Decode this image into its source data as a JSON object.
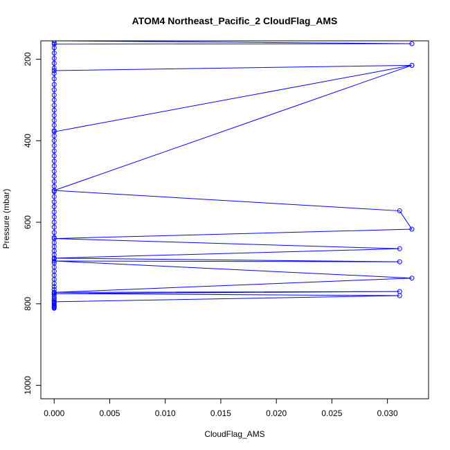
{
  "chart_data": {
    "type": "line",
    "title": "ATOM4 Northeast_Pacific_2 CloudFlag_AMS",
    "xlabel": "CloudFlag_AMS",
    "ylabel": "Pressure (mbar)",
    "xlim": [
      -0.0012,
      0.0337
    ],
    "ylim": [
      1033,
      155
    ],
    "y_reversed": true,
    "x_ticks": [
      0,
      0.005,
      0.01,
      0.015,
      0.02,
      0.025,
      0.03
    ],
    "x_tick_labels": [
      "0.000",
      "0.005",
      "0.010",
      "0.015",
      "0.020",
      "0.025",
      "0.030"
    ],
    "y_ticks": [
      200,
      400,
      600,
      800,
      1000
    ],
    "y_tick_labels": [
      "200",
      "400",
      "600",
      "800",
      "1000"
    ],
    "grid": false,
    "legend": "none",
    "colors": {
      "series": "#0000ff",
      "axis": "#000000"
    },
    "series": [
      {
        "marker": "open-circle",
        "x": [
          0,
          0.0322,
          0,
          0,
          0.0322,
          0,
          0.0322,
          0,
          0.0311,
          0.0322,
          0,
          0.0311,
          0,
          0.0311,
          0,
          0.0322,
          0,
          0.0311,
          0,
          0.0311,
          0
        ],
        "y": [
          155,
          162,
          163,
          228,
          215,
          378,
          215,
          522,
          572,
          617,
          640,
          665,
          688,
          697,
          695,
          737,
          772,
          770,
          775,
          780,
          795
        ]
      },
      {
        "marker": "open-circle",
        "x": [
          0,
          0,
          0,
          0,
          0,
          0,
          0,
          0,
          0,
          0,
          0,
          0,
          0,
          0,
          0,
          0,
          0,
          0,
          0,
          0,
          0,
          0,
          0,
          0,
          0,
          0,
          0,
          0,
          0,
          0,
          0,
          0,
          0,
          0,
          0,
          0,
          0,
          0,
          0,
          0,
          0,
          0,
          0,
          0,
          0,
          0,
          0,
          0,
          0,
          0,
          0,
          0,
          0,
          0,
          0,
          0,
          0,
          0,
          0,
          0,
          0,
          0,
          0,
          0
        ],
        "y": [
          160,
          172,
          185,
          198,
          210,
          222,
          235,
          248,
          262,
          275,
          288,
          300,
          313,
          325,
          338,
          350,
          362,
          375,
          388,
          400,
          412,
          425,
          437,
          450,
          462,
          475,
          487,
          500,
          512,
          525,
          537,
          550,
          562,
          575,
          587,
          600,
          612,
          625,
          637,
          650,
          660,
          670,
          680,
          690,
          700,
          710,
          720,
          730,
          740,
          750,
          758,
          765,
          772,
          778,
          783,
          788,
          792,
          796,
          799,
          802,
          805,
          807,
          809,
          811
        ]
      }
    ]
  }
}
